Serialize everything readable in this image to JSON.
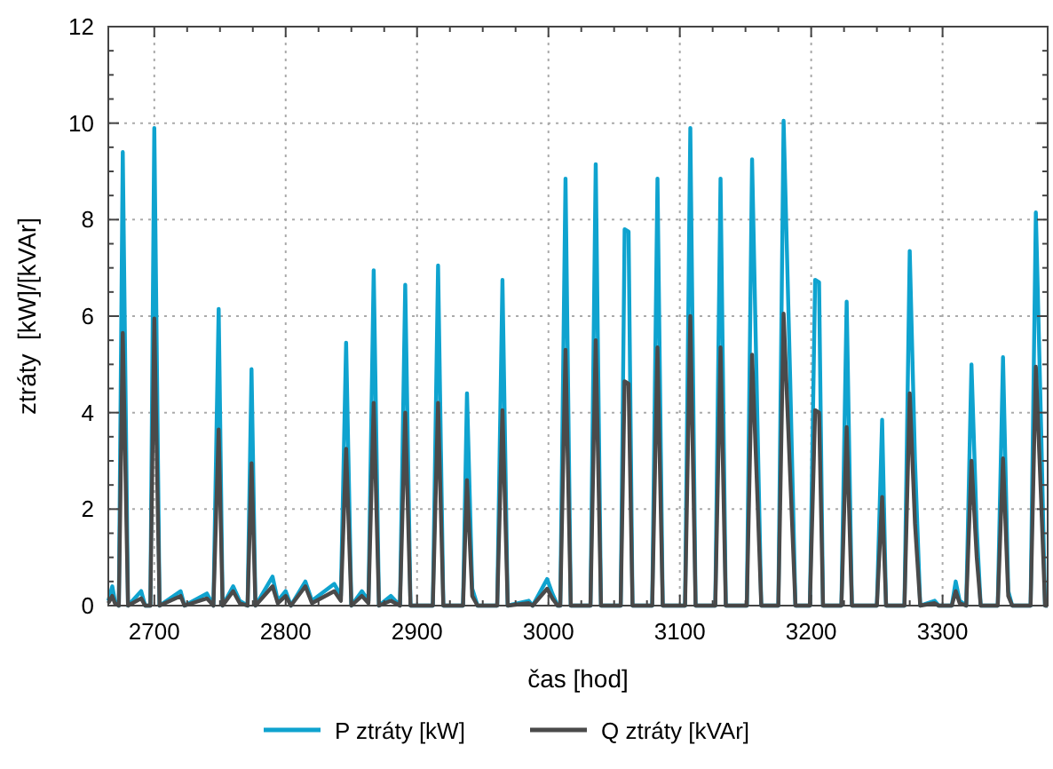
{
  "chart_data": {
    "type": "line",
    "xlabel": "čas [hod]",
    "ylabel": "ztráty  [kW]/[kVAr]",
    "x": [
      2665,
      2668,
      2670,
      2673,
      2676,
      2680,
      2690,
      2693,
      2697,
      2700,
      2704,
      2720,
      2723,
      2740,
      2745,
      2749,
      2752,
      2760,
      2765,
      2771,
      2774,
      2777,
      2790,
      2794,
      2800,
      2804,
      2815,
      2820,
      2837,
      2842,
      2846,
      2850,
      2858,
      2863,
      2867,
      2871,
      2880,
      2887,
      2891,
      2895,
      2912,
      2916,
      2920,
      2935,
      2938,
      2942,
      2946,
      2961,
      2965,
      2969,
      2985,
      2988,
      2999,
      3003,
      3007,
      3009,
      3013,
      3017,
      3032,
      3036,
      3040,
      3055,
      3058,
      3061,
      3064,
      3079,
      3083,
      3087,
      3104,
      3108,
      3112,
      3127,
      3131,
      3135,
      3151,
      3155,
      3159,
      3162,
      3175,
      3179,
      3184,
      3188,
      3199,
      3203,
      3206,
      3209,
      3223,
      3227,
      3231,
      3250,
      3254,
      3257,
      3271,
      3275,
      3279,
      3283,
      3294,
      3297,
      3307,
      3310,
      3313,
      3318,
      3322,
      3326,
      3329,
      3342,
      3346,
      3350,
      3353,
      3367,
      3371,
      3375,
      3378,
      3380
    ],
    "series": [
      {
        "name": "P ztráty [kW]",
        "color": "#0fa3cf",
        "values": [
          0.1,
          0.4,
          0.1,
          0,
          9.4,
          0,
          0.3,
          0,
          0,
          9.9,
          0,
          0.3,
          0,
          0.25,
          0,
          6.15,
          0,
          0.4,
          0.1,
          0,
          4.9,
          0,
          0.6,
          0.1,
          0.3,
          0,
          0.5,
          0.1,
          0.45,
          0.2,
          5.45,
          0,
          0.3,
          0.1,
          6.95,
          0,
          0.2,
          0,
          6.65,
          0,
          0,
          7.05,
          0,
          0,
          4.4,
          0.35,
          0,
          0,
          6.75,
          0,
          0.1,
          0,
          0.55,
          0.25,
          0,
          0,
          8.85,
          0,
          0,
          9.15,
          0,
          0,
          7.8,
          7.75,
          0,
          0,
          8.85,
          0,
          0,
          9.9,
          0,
          0,
          8.85,
          0,
          0,
          9.25,
          3.9,
          0,
          0,
          10.05,
          4.7,
          0,
          0,
          6.75,
          6.7,
          0,
          0,
          6.3,
          0,
          0,
          3.85,
          0,
          0,
          7.35,
          3.0,
          0,
          0.1,
          0,
          0,
          0.5,
          0.1,
          0,
          5.0,
          1.6,
          0,
          0,
          5.15,
          0.3,
          0,
          0,
          8.15,
          3.7,
          0,
          0
        ]
      },
      {
        "name": "Q ztráty [kVAr]",
        "color": "#4a4a4a",
        "values": [
          0.05,
          0.2,
          0.05,
          0,
          5.65,
          0,
          0.15,
          0,
          0,
          5.95,
          0,
          0.2,
          0,
          0.15,
          0,
          3.65,
          0,
          0.3,
          0.05,
          0,
          2.95,
          0,
          0.4,
          0.05,
          0.2,
          0,
          0.4,
          0.05,
          0.3,
          0.1,
          3.25,
          0,
          0.2,
          0.05,
          4.2,
          0,
          0.1,
          0,
          4.0,
          0,
          0,
          4.2,
          0,
          0,
          2.6,
          0.2,
          0,
          0,
          4.05,
          0,
          0.05,
          0,
          0.35,
          0.15,
          0,
          0,
          5.3,
          0,
          0,
          5.5,
          0,
          0,
          4.65,
          4.6,
          0,
          0,
          5.35,
          0,
          0,
          6.0,
          0,
          0,
          5.35,
          0,
          0,
          5.2,
          2.3,
          0,
          0,
          6.05,
          2.7,
          0,
          0,
          4.05,
          4.0,
          0,
          0,
          3.7,
          0,
          0,
          2.25,
          0,
          0,
          4.4,
          1.7,
          0,
          0.05,
          0,
          0,
          0.3,
          0.05,
          0,
          3.0,
          1.0,
          0,
          0,
          3.05,
          0.2,
          0,
          0,
          4.95,
          2.2,
          0,
          0
        ]
      }
    ],
    "xlim": [
      2665,
      3380
    ],
    "xticks": [
      2700,
      2800,
      2900,
      3000,
      3100,
      3200,
      3300
    ],
    "ylim": [
      0,
      12
    ],
    "yticks": [
      0,
      2,
      4,
      6,
      8,
      10,
      12
    ],
    "grid": true,
    "legend": "bottom",
    "line_style": "solid"
  }
}
